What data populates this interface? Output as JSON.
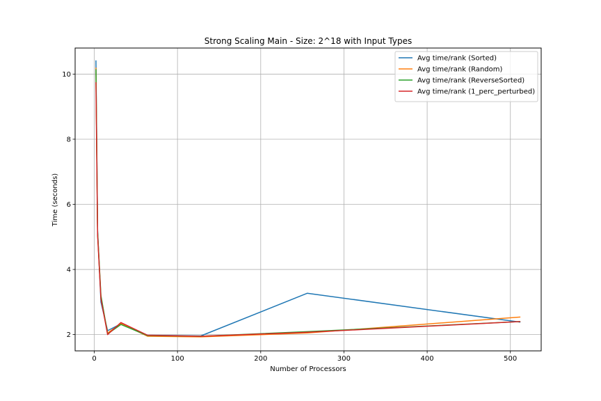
{
  "chart_data": {
    "type": "line",
    "title": "Strong Scaling Main - Size: 2^18 with Input Types",
    "xlabel": "Number of Processors",
    "ylabel": "Time (seconds)",
    "xlim": [
      -23,
      537
    ],
    "ylim": [
      1.5,
      10.8
    ],
    "xticks": [
      0,
      100,
      200,
      300,
      400,
      500
    ],
    "yticks": [
      2,
      4,
      6,
      8,
      10
    ],
    "grid": true,
    "legend_position": "upper right",
    "x": [
      2,
      4,
      8,
      16,
      32,
      64,
      128,
      256,
      512
    ],
    "series": [
      {
        "name": "Avg time/rank (Sorted)",
        "color": "#1f77b4",
        "values": [
          10.42,
          5.2,
          3.0,
          2.12,
          2.33,
          1.98,
          1.96,
          3.27,
          2.38
        ]
      },
      {
        "name": "Avg time/rank (Random)",
        "color": "#ff7f0e",
        "values": [
          10.2,
          5.1,
          3.15,
          2.05,
          2.34,
          1.95,
          1.93,
          2.05,
          2.54
        ]
      },
      {
        "name": "Avg time/rank (ReverseSorted)",
        "color": "#2ca02c",
        "values": [
          10.15,
          5.15,
          3.2,
          2.02,
          2.31,
          1.97,
          1.95,
          2.09,
          2.4
        ]
      },
      {
        "name": "Avg time/rank (1_perc_perturbed)",
        "color": "#d62728",
        "values": [
          9.75,
          5.05,
          3.1,
          2.0,
          2.37,
          1.98,
          1.95,
          2.07,
          2.4
        ]
      }
    ]
  }
}
